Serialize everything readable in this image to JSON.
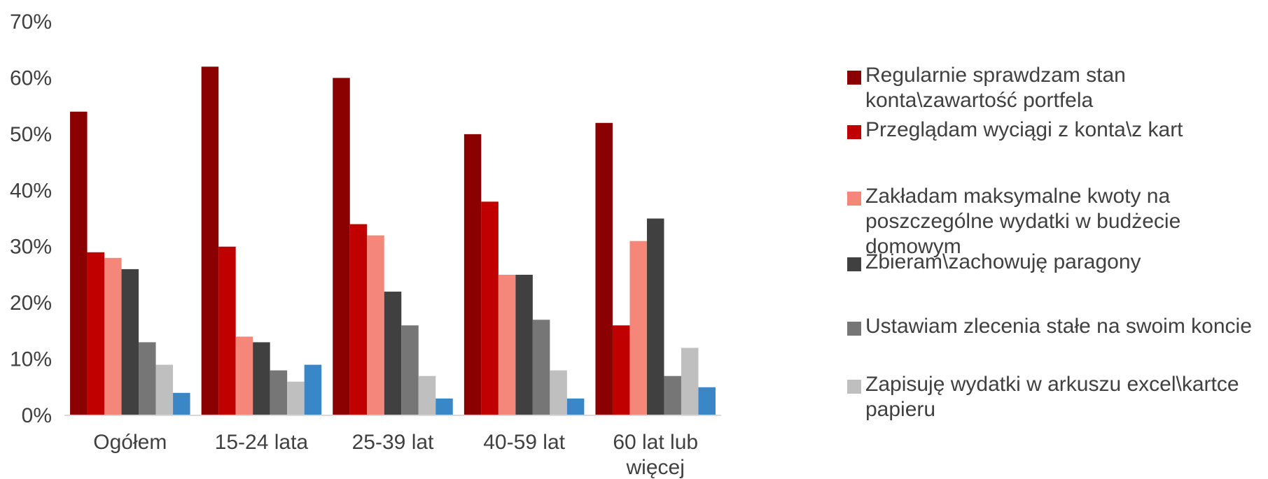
{
  "chart_data": {
    "type": "bar",
    "ylim": [
      0,
      70
    ],
    "y_tick_step": 10,
    "y_tick_suffix": "%",
    "grid": false,
    "legend_position": "right",
    "categories": [
      "Ogółem",
      "15-24 lata",
      "25-39 lat",
      "40-59 lat",
      "60 lat lub\nwięcej"
    ],
    "series": [
      {
        "name": "Regularnie sprawdzam stan konta\\zawartość portfela",
        "color": "#8B0000",
        "values": [
          54,
          62,
          60,
          50,
          52
        ]
      },
      {
        "name": "Przeglądam wyciągi z konta\\z kart",
        "color": "#C00000",
        "values": [
          29,
          30,
          34,
          38,
          16
        ]
      },
      {
        "name": "Zakładam maksymalne kwoty na poszczególne wydatki w budżecie domowym",
        "color": "#F4877A",
        "values": [
          28,
          14,
          32,
          25,
          31
        ]
      },
      {
        "name": "Zbieram\\zachowuję paragony",
        "color": "#404040",
        "values": [
          26,
          13,
          22,
          25,
          35
        ]
      },
      {
        "name": "Ustawiam zlecenia stałe na swoim koncie",
        "color": "#767676",
        "values": [
          13,
          8,
          16,
          17,
          7
        ]
      },
      {
        "name": "Zapisuję wydatki w arkuszu excel\\kartce papieru",
        "color": "#BFBFBF",
        "values": [
          9,
          6,
          7,
          8,
          12
        ]
      },
      {
        "name": "",
        "color": "#3A87C8",
        "values": [
          4,
          9,
          3,
          3,
          5
        ]
      }
    ]
  }
}
